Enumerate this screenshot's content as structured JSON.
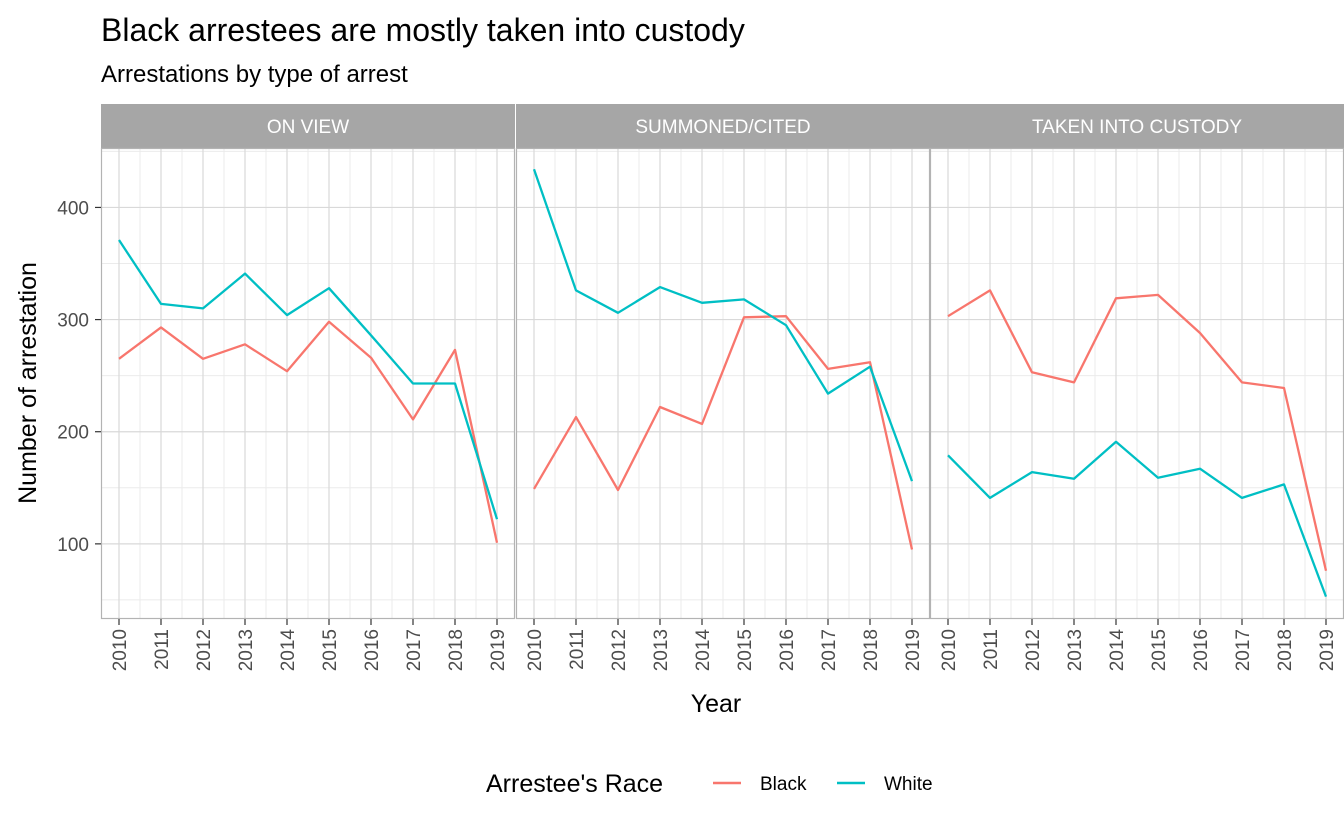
{
  "title": "Black arrestees are mostly taken into custody",
  "subtitle": "Arrestations by type of arrest",
  "colors": {
    "Black": "#F8766D",
    "White": "#00BFC4",
    "strip": "#A6A6A6"
  },
  "chart_data": {
    "type": "line",
    "xlabel": "Year",
    "ylabel": "Number of arrestation",
    "ylim": [
      33,
      453
    ],
    "yticks": [
      100,
      200,
      300,
      400
    ],
    "x": [
      2010,
      2011,
      2012,
      2013,
      2014,
      2015,
      2016,
      2017,
      2018,
      2019
    ],
    "x_tick_labels": [
      "2010",
      "2011",
      "2012",
      "2013",
      "2014",
      "2015",
      "2016",
      "2017",
      "2018",
      "2019"
    ],
    "y_tick_labels": [
      "100",
      "200",
      "300",
      "400"
    ],
    "grid": true,
    "legend": {
      "title": "Arrestee's Race",
      "position": "bottom",
      "entries": [
        "Black",
        "White"
      ]
    },
    "facets": [
      {
        "label": "ON VIEW",
        "series": [
          {
            "name": "Black",
            "values": [
              265,
              293,
              265,
              278,
              254,
              298,
              266,
              211,
              273,
              101
            ]
          },
          {
            "name": "White",
            "values": [
              371,
              314,
              310,
              341,
              304,
              328,
              286,
              243,
              243,
              122
            ]
          }
        ]
      },
      {
        "label": "SUMMONED/CITED",
        "series": [
          {
            "name": "Black",
            "values": [
              149,
              213,
              148,
              222,
              207,
              302,
              303,
              256,
              262,
              95
            ]
          },
          {
            "name": "White",
            "values": [
              434,
              326,
              306,
              329,
              315,
              318,
              295,
              234,
              258,
              156
            ]
          }
        ]
      },
      {
        "label": "TAKEN INTO CUSTODY",
        "series": [
          {
            "name": "Black",
            "values": [
              303,
              326,
              253,
              244,
              319,
              322,
              288,
              244,
              239,
              76
            ]
          },
          {
            "name": "White",
            "values": [
              179,
              141,
              164,
              158,
              191,
              159,
              167,
              141,
              153,
              53
            ]
          }
        ]
      }
    ]
  }
}
